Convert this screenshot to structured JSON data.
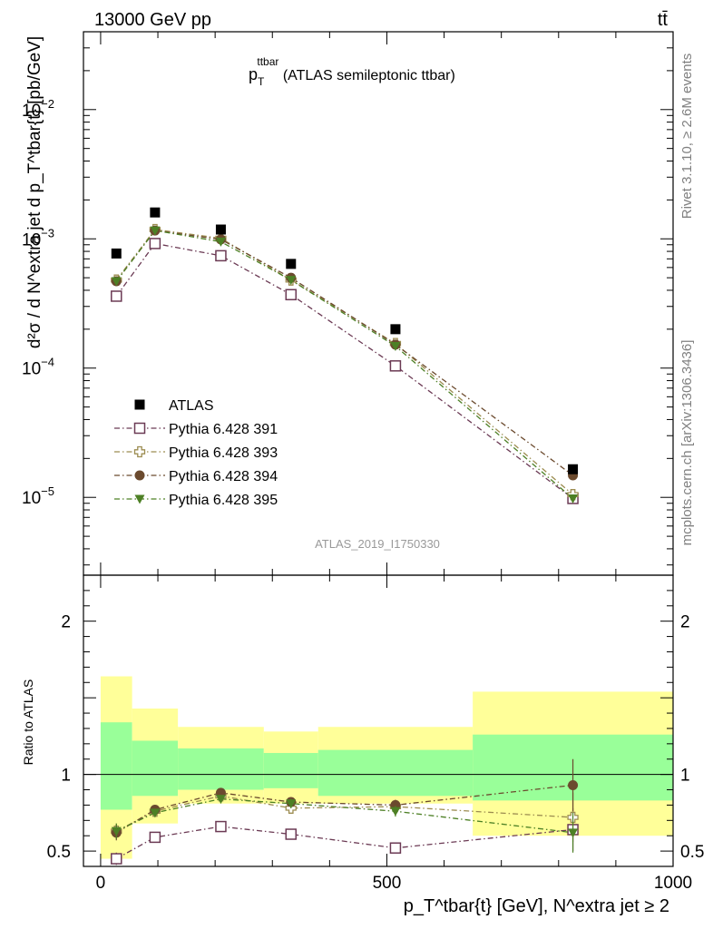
{
  "header": {
    "left": "13000 GeV pp",
    "right": "tt̄"
  },
  "side_labels": {
    "rivet": "Rivet 3.1.10, ≥ 2.6M events",
    "mcplots": "mcplots.cern.ch [arXiv:1306.3436]"
  },
  "chart_data": {
    "type": "line",
    "title": "p_T^ttbar (ATLAS semileptonic ttbar)",
    "title_parts": {
      "main": "p",
      "sub": "T",
      "sup": "ttbar",
      "rest": " (ATLAS semileptonic ttbar)"
    },
    "analysis_tag": "ATLAS_2019_I1750330",
    "ylabel_main": "d²σ / d N^extra jet d p_T^tbar{t} [pb/GeV]",
    "ylabel_ratio": "Ratio to ATLAS",
    "xlabel": "p_T^tbar{t} [GeV], N^extra jet ≥ 2",
    "x_scale": "linear",
    "y_scale_main": "log",
    "xlim": [
      -30,
      1000
    ],
    "ylim_main": [
      2.5e-06,
      0.04
    ],
    "ylim_ratio": [
      0.4,
      2.3
    ],
    "x_ticks": [
      0,
      500,
      1000
    ],
    "y_ticks_main": [
      "10^-5",
      "10^-4",
      "10^-3",
      "10^-2"
    ],
    "y_ticks_ratio": [
      0.5,
      1,
      2
    ],
    "bins": [
      [
        0,
        55
      ],
      [
        55,
        135
      ],
      [
        135,
        285
      ],
      [
        285,
        380
      ],
      [
        380,
        650
      ],
      [
        650,
        1000
      ]
    ],
    "x": [
      27.5,
      95,
      210,
      332.5,
      515,
      825
    ],
    "reference": {
      "name": "ATLAS",
      "values": [
        0.00077,
        0.0016,
        0.00118,
        0.00064,
        0.0002,
        1.65e-05
      ],
      "band_stat": [
        [
          0.77,
          1.34
        ],
        [
          0.86,
          1.22
        ],
        [
          0.9,
          1.17
        ],
        [
          0.91,
          1.14
        ],
        [
          0.86,
          1.16
        ],
        [
          0.83,
          1.26
        ]
      ],
      "band_total": [
        [
          0.45,
          1.64
        ],
        [
          0.68,
          1.43
        ],
        [
          0.81,
          1.31
        ],
        [
          0.81,
          1.28
        ],
        [
          0.81,
          1.31
        ],
        [
          0.6,
          1.54
        ]
      ]
    },
    "series": [
      {
        "name": "Pythia 6.428 391",
        "color": "#6b3a54",
        "marker": "open-square",
        "values": [
          0.00036,
          0.00092,
          0.00074,
          0.00037,
          0.000104,
          9.8e-06
        ],
        "ratio": [
          0.45,
          0.59,
          0.66,
          0.61,
          0.52,
          0.64
        ],
        "ratio_err": [
          0.04,
          0.02,
          0.015,
          0.03,
          0.035,
          0.14
        ]
      },
      {
        "name": "Pythia 6.428 393",
        "color": "#9c8c50",
        "marker": "open-cross",
        "values": [
          0.00048,
          0.00118,
          0.00101,
          0.00048,
          0.000155,
          1.05e-05
        ],
        "ratio": [
          0.63,
          0.76,
          0.86,
          0.78,
          0.79,
          0.72
        ],
        "ratio_err": [
          0.05,
          0.02,
          0.015,
          0.03,
          0.035,
          0.16
        ]
      },
      {
        "name": "Pythia 6.428 394",
        "color": "#6b4a2e",
        "marker": "filled-circle",
        "values": [
          0.00047,
          0.00116,
          0.00099,
          0.0005,
          0.000152,
          1.48e-05
        ],
        "ratio": [
          0.62,
          0.77,
          0.88,
          0.82,
          0.8,
          0.93
        ],
        "ratio_err": [
          0.05,
          0.02,
          0.015,
          0.03,
          0.035,
          0.17
        ]
      },
      {
        "name": "Pythia 6.428 395",
        "color": "#4d8025",
        "marker": "filled-triangle-down",
        "values": [
          0.00047,
          0.00116,
          0.00095,
          0.00048,
          0.000148,
          9.8e-06
        ],
        "ratio": [
          0.63,
          0.75,
          0.84,
          0.81,
          0.76,
          0.62
        ],
        "ratio_err": [
          0.05,
          0.02,
          0.015,
          0.03,
          0.035,
          0.13
        ]
      }
    ]
  }
}
